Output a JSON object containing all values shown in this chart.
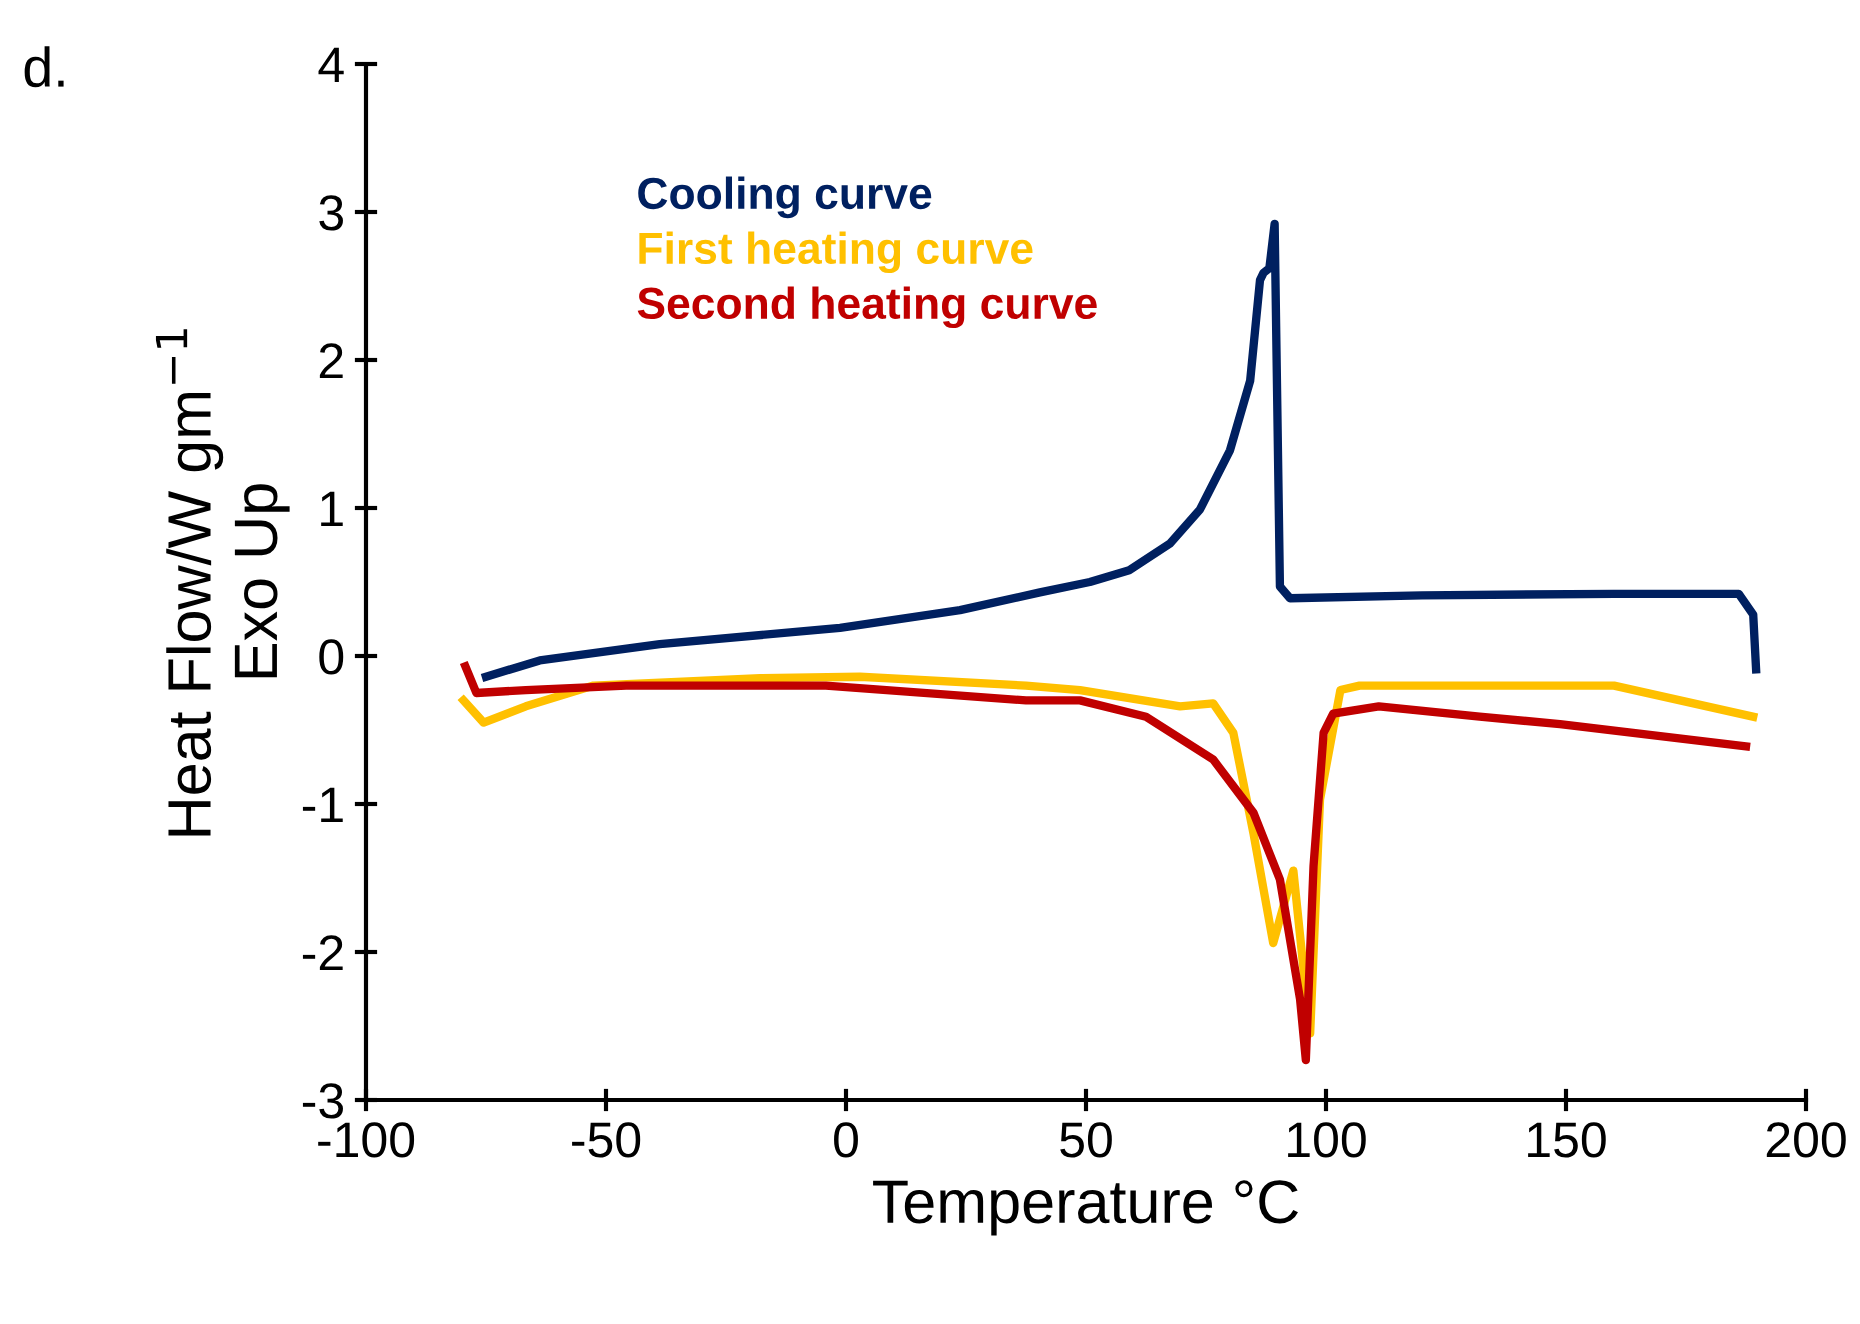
{
  "chart_data": {
    "type": "line",
    "xlabel": "Temperature °C",
    "ylabel": "Heat Flow/W gm$^{−1}$\nExo Up",
    "xlim": [
      -100,
      200
    ],
    "ylim": [
      -3,
      4
    ],
    "xticks": [
      -100,
      -50,
      0,
      50,
      100,
      150,
      200
    ],
    "yticks": [
      -3,
      -2,
      -1,
      0,
      1,
      2,
      3,
      4
    ],
    "grid": false,
    "legend": "top left",
    "marker": "none",
    "line_style": "solid",
    "annotations": [
      "d."
    ],
    "series": [
      {
        "name": "Cooling curve",
        "color": "#002060",
        "x": [
          -75,
          -63.8,
          -38.8,
          -1.25,
          23.75,
          40.4,
          50.8,
          59,
          67.5,
          73.75,
          80,
          84.2,
          86.25,
          87,
          88.2,
          89.3,
          90.4,
          92.5,
          120,
          160,
          186,
          189,
          189.6
        ],
        "values": [
          -0.14,
          -0.03,
          0.08,
          0.19,
          0.31,
          0.43,
          0.5,
          0.58,
          0.76,
          0.99,
          1.39,
          1.86,
          2.54,
          2.59,
          2.62,
          2.92,
          0.47,
          0.39,
          0.41,
          0.42,
          0.42,
          0.28,
          -0.09
        ]
      },
      {
        "name": "First heating curve",
        "color": "#ffc000",
        "x": [
          -79.7,
          -75.5,
          -66.7,
          -52.6,
          -17.9,
          2.9,
          37.5,
          48.75,
          69.6,
          76.5,
          80.7,
          84.9,
          89,
          93.2,
          96.7,
          98.75,
          103,
          107,
          160,
          189
        ],
        "values": [
          -0.3,
          -0.45,
          -0.34,
          -0.2,
          -0.15,
          -0.14,
          -0.2,
          -0.23,
          -0.34,
          -0.32,
          -0.52,
          -1.2,
          -1.94,
          -1.45,
          -2.55,
          -0.97,
          -0.23,
          -0.2,
          -0.2,
          -0.41
        ]
      },
      {
        "name": "Second heating curve",
        "color": "#c00000",
        "x": [
          -79.3,
          -77,
          -66.7,
          -45.8,
          -4.2,
          37.5,
          48.75,
          62.5,
          76.5,
          84.9,
          90.4,
          94.6,
          95.8,
          97.4,
          99.5,
          101.5,
          111,
          132,
          148.75,
          187.5
        ],
        "values": [
          -0.07,
          -0.25,
          -0.23,
          -0.2,
          -0.2,
          -0.3,
          -0.3,
          -0.41,
          -0.7,
          -1.06,
          -1.51,
          -2.32,
          -2.73,
          -1.42,
          -0.52,
          -0.39,
          -0.34,
          -0.41,
          -0.46,
          -0.61
        ]
      }
    ]
  }
}
